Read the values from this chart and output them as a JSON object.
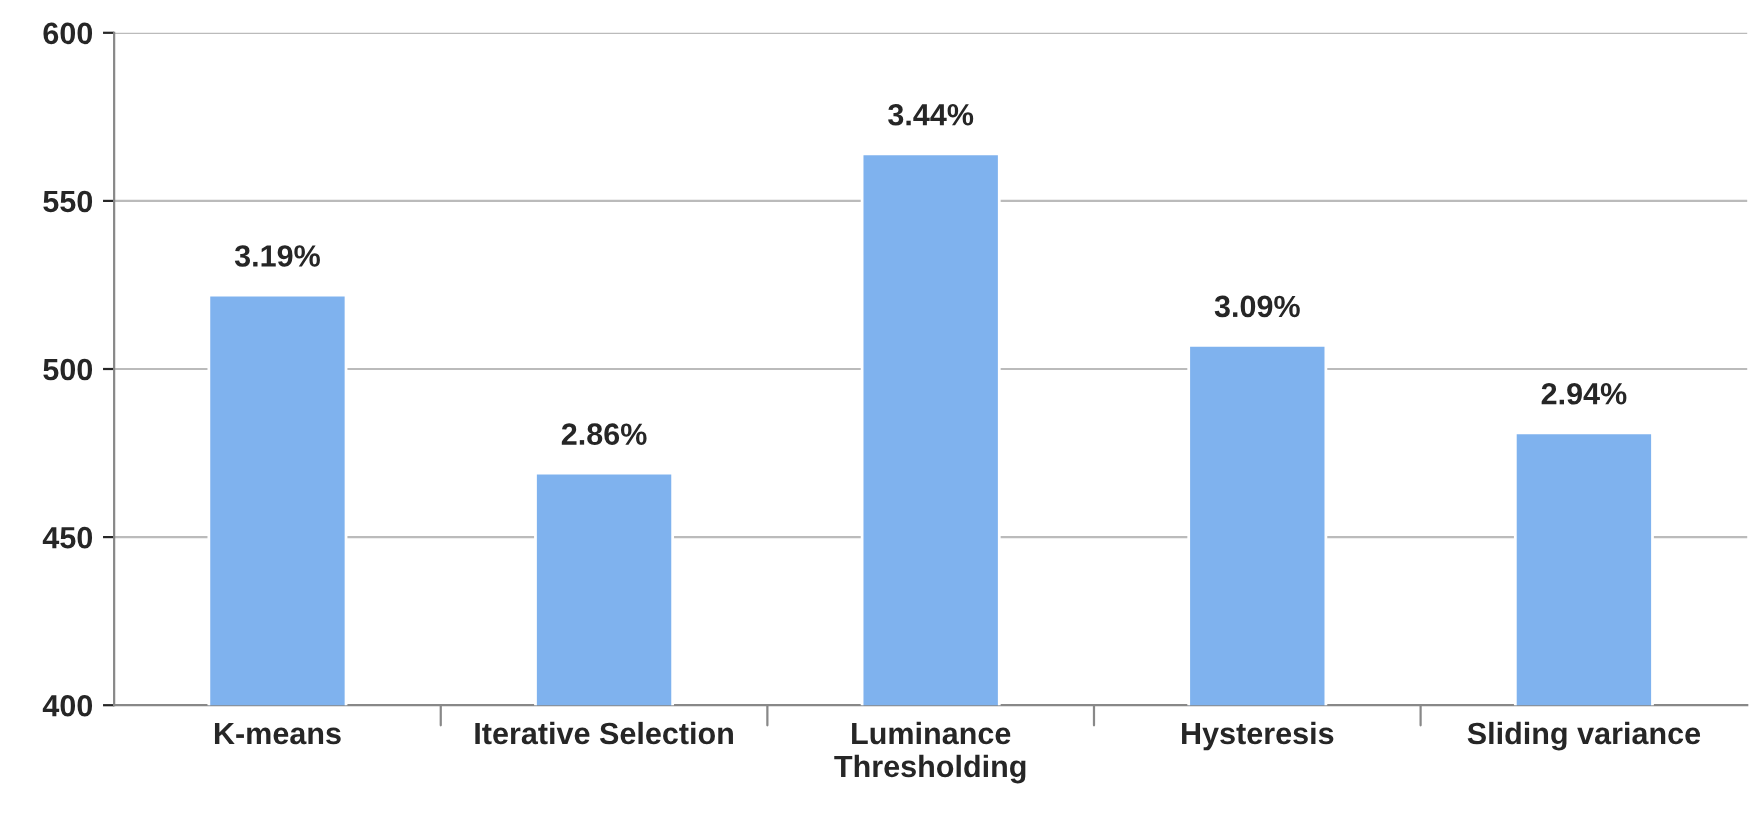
{
  "chart_data": {
    "type": "bar",
    "categories": [
      "K-means",
      "Iterative Selection",
      "Luminance\nThresholding",
      "Hysteresis",
      "Sliding variance"
    ],
    "values": [
      522,
      469,
      564,
      507,
      481
    ],
    "annotations": [
      {
        "text": "3.19%",
        "x": "K-means",
        "y": 522
      },
      {
        "text": "2.86%",
        "x": "Iterative Selection",
        "y": 469
      },
      {
        "text": "3.44%",
        "x": "Luminance\nThresholding",
        "y": 564
      },
      {
        "text": "3.09%",
        "x": "Hysteresis",
        "y": 507
      },
      {
        "text": "2.94%",
        "x": "Sliding variance",
        "y": 481
      }
    ],
    "color": "#7fb2ee",
    "ylim": [
      400,
      600
    ],
    "yticks": [
      400,
      450,
      500,
      550,
      600
    ],
    "grid": "y"
  }
}
